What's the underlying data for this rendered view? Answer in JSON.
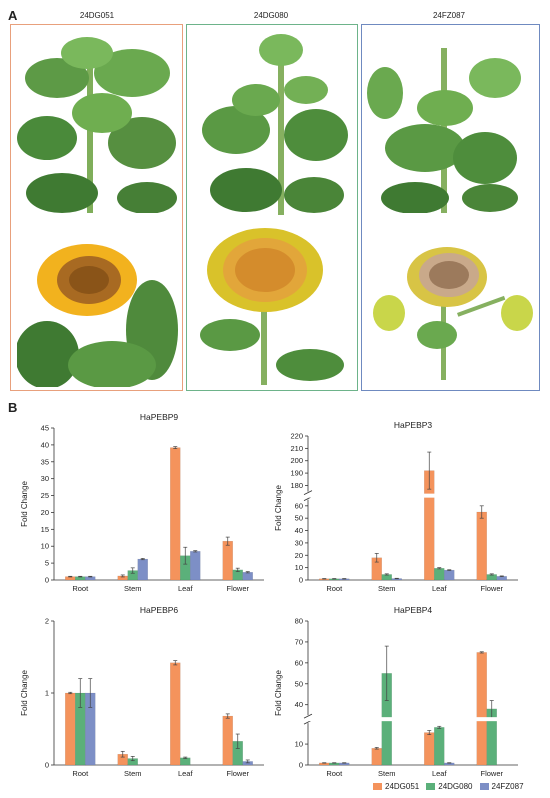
{
  "panels": {
    "a": "A",
    "b": "B"
  },
  "columns": [
    {
      "name": "24DG051",
      "border": "#e8a07c"
    },
    {
      "name": "24DG080",
      "border": "#6db38a"
    },
    {
      "name": "24FZ087",
      "border": "#6f8ac0"
    }
  ],
  "photos": [
    {
      "subject": "plant-shoot"
    },
    {
      "subject": "flower-head"
    },
    {
      "subject": "plant-shoot"
    },
    {
      "subject": "flower-head"
    },
    {
      "subject": "plant-shoot"
    },
    {
      "subject": "flower-head"
    }
  ],
  "colors": {
    "24DG051": "#f4935c",
    "24DG080": "#5bb07a",
    "24FZ087": "#7d8fc6"
  },
  "legend": [
    "24DG051",
    "24DG080",
    "24FZ087"
  ],
  "chart_data": [
    {
      "type": "bar",
      "title": "HaPEBP9",
      "ylabel": "Fold Change",
      "categories": [
        "Root",
        "Stem",
        "Leaf",
        "Flower"
      ],
      "ylim": [
        0,
        45
      ],
      "yticks": [
        0,
        5,
        10,
        15,
        20,
        25,
        30,
        35,
        40,
        45
      ],
      "series": [
        {
          "name": "24DG051",
          "values": [
            1,
            1.2,
            39.2,
            11.5
          ],
          "errors": [
            0.1,
            0.3,
            0.3,
            1.2
          ]
        },
        {
          "name": "24DG080",
          "values": [
            1,
            2.8,
            7.2,
            3
          ],
          "errors": [
            0.1,
            0.8,
            2.5,
            0.5
          ]
        },
        {
          "name": "24FZ087",
          "values": [
            1,
            6.2,
            8.5,
            2.3
          ],
          "errors": [
            0.1,
            0.2,
            0.2,
            0.2
          ]
        }
      ]
    },
    {
      "type": "bar",
      "title": "HaPEBP3",
      "ylabel": "Fold Change",
      "categories": [
        "Root",
        "Stem",
        "Leaf",
        "Flower"
      ],
      "ylim": [
        0,
        220
      ],
      "axis_break": [
        65,
        175
      ],
      "yticks": [
        0,
        10,
        20,
        30,
        40,
        50,
        60,
        180,
        190,
        200,
        210,
        220
      ],
      "series": [
        {
          "name": "24DG051",
          "values": [
            1,
            18,
            192,
            55
          ],
          "errors": [
            0.2,
            3.5,
            15,
            5
          ]
        },
        {
          "name": "24DG080",
          "values": [
            1,
            4.5,
            9.5,
            4.5
          ],
          "errors": [
            0.2,
            0.5,
            0.5,
            0.5
          ]
        },
        {
          "name": "24FZ087",
          "values": [
            1,
            1.2,
            8,
            3
          ],
          "errors": [
            0.2,
            0.2,
            0.3,
            0.3
          ]
        }
      ]
    },
    {
      "type": "bar",
      "title": "HaPEBP6",
      "ylabel": "Fold Change",
      "categories": [
        "Root",
        "Stem",
        "Leaf",
        "Flower"
      ],
      "ylim": [
        0,
        2
      ],
      "yticks": [
        0,
        1,
        2
      ],
      "series": [
        {
          "name": "24DG051",
          "values": [
            1,
            0.15,
            1.42,
            0.68
          ],
          "errors": [
            0.01,
            0.04,
            0.03,
            0.03
          ]
        },
        {
          "name": "24DG080",
          "values": [
            1,
            0.09,
            0.1,
            0.33
          ],
          "errors": [
            0.2,
            0.03,
            0.01,
            0.1
          ]
        },
        {
          "name": "24FZ087",
          "values": [
            1,
            0,
            0,
            0.05
          ],
          "errors": [
            0.2,
            0,
            0,
            0.02
          ]
        }
      ]
    },
    {
      "type": "bar",
      "title": "HaPEBP4",
      "ylabel": "Fold Change",
      "categories": [
        "Root",
        "Stem",
        "Leaf",
        "Flower"
      ],
      "ylim": [
        0,
        80
      ],
      "axis_break": [
        20,
        35
      ],
      "yticks": [
        0,
        10,
        40,
        50,
        60,
        70,
        80
      ],
      "series": [
        {
          "name": "24DG051",
          "values": [
            1,
            8,
            15.5,
            65
          ],
          "errors": [
            0.1,
            0.4,
            1,
            0.3
          ]
        },
        {
          "name": "24DG080",
          "values": [
            1,
            55,
            18,
            38
          ],
          "errors": [
            0.1,
            13,
            0.5,
            4
          ]
        },
        {
          "name": "24FZ087",
          "values": [
            1,
            0,
            1,
            0
          ],
          "errors": [
            0.1,
            0,
            0.1,
            0
          ]
        }
      ]
    }
  ]
}
